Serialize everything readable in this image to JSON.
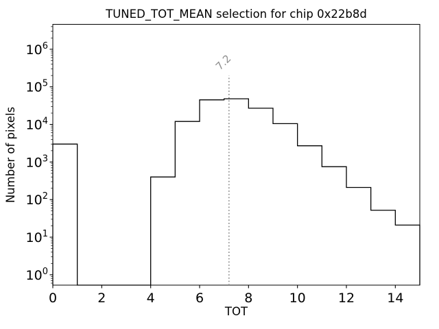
{
  "figure": {
    "background": "#ffffff"
  },
  "chart_data": {
    "type": "bar",
    "style": "step-histogram",
    "title": "TUNED_TOT_MEAN selection for chip 0x22b8d",
    "xlabel": "TOT",
    "ylabel": "Number of pixels",
    "bin_edges": [
      0,
      1,
      2,
      3,
      4,
      5,
      6,
      7,
      8,
      9,
      10,
      11,
      12,
      13,
      14,
      15
    ],
    "counts": [
      3000,
      0,
      0,
      0,
      400,
      12000,
      45000,
      48000,
      27000,
      10500,
      2700,
      750,
      210,
      52,
      21
    ],
    "xlim": [
      0,
      15
    ],
    "ylim": [
      0.53,
      4600000
    ],
    "yscale": "log",
    "x_major_ticks": [
      0,
      2,
      4,
      6,
      8,
      10,
      12,
      14
    ],
    "y_major_tick_exponents": [
      0,
      1,
      2,
      3,
      4,
      5,
      6
    ],
    "grid": false,
    "legend": false,
    "line_color": "#000000",
    "frame_color": "#000000",
    "annotation": {
      "label": "7.2",
      "x": 7.2,
      "line_top_value": 200000,
      "color": "#8f8f8f",
      "line_style": "dotted",
      "rotation": -45
    }
  }
}
